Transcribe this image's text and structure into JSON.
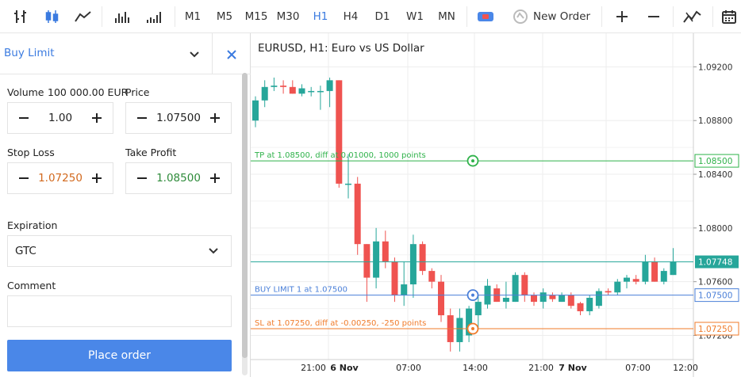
{
  "toolbar": {
    "timeframes": [
      "M1",
      "M5",
      "M15",
      "M30",
      "H1",
      "H4",
      "D1",
      "W1",
      "MN"
    ],
    "active_timeframe": "H1",
    "new_order_label": "New Order",
    "icons": [
      "bar-chart-icon",
      "candlestick-chart-icon",
      "line-chart-icon",
      "volume-bars-icon",
      "volume-ticks-icon",
      "toggle-icon",
      "one-click-icon",
      "zoom-in-icon",
      "zoom-out-icon",
      "indicators-icon",
      "calendar-icon"
    ]
  },
  "order": {
    "type_label": "Buy Limit",
    "volume_label": "Volume",
    "volume_amount": "100 000.00 EUR",
    "volume_value": "1.00",
    "price_label": "Price",
    "price_value": "1.07500",
    "sl_label": "Stop Loss",
    "sl_value": "1.07250",
    "tp_label": "Take Profit",
    "tp_value": "1.08500",
    "expiration_label": "Expiration",
    "expiration_value": "GTC",
    "comment_label": "Comment",
    "comment_value": "",
    "place_label": "Place order"
  },
  "colors": {
    "accent": "#3b7be0",
    "bull": "#26a69a",
    "bear": "#ef5350",
    "tp": "#2fb24a",
    "sl": "#f07b2a",
    "buy_limit": "#4a7fd8",
    "current": "#26a69a"
  },
  "chart_data": {
    "type": "candlestick",
    "title": "EURUSD, H1: Euro vs US Dollar",
    "ylim": [
      1.0702,
      1.0945
    ],
    "y_ticks": [
      "1.09200",
      "1.08800",
      "1.08400",
      "1.08000",
      "1.07600",
      "1.07200"
    ],
    "x_ticks": [
      "21:00",
      "6 Nov",
      "07:00",
      "14:00",
      "21:00",
      "7 Nov",
      "07:00",
      "12:00"
    ],
    "current_price": "1.07748",
    "lines": [
      {
        "kind": "tp",
        "price": 1.085,
        "price_label": "1.08500",
        "text": "TP at 1.08500, diff at 0.01000, 1000 points"
      },
      {
        "kind": "buy_limit",
        "price": 1.075,
        "price_label": "1.07500",
        "text": "BUY LIMIT 1 at 1.07500"
      },
      {
        "kind": "sl",
        "price": 1.0725,
        "price_label": "1.07250",
        "text": "SL at 1.07250, diff at -0.00250, -250 points"
      }
    ],
    "candles": [
      {
        "o": 1.088,
        "h": 1.0898,
        "l": 1.0875,
        "c": 1.0895
      },
      {
        "o": 1.0895,
        "h": 1.091,
        "l": 1.089,
        "c": 1.0905
      },
      {
        "o": 1.0905,
        "h": 1.0912,
        "l": 1.0902,
        "c": 1.0906
      },
      {
        "o": 1.0906,
        "h": 1.091,
        "l": 1.09,
        "c": 1.0905
      },
      {
        "o": 1.0905,
        "h": 1.091,
        "l": 1.09,
        "c": 1.09
      },
      {
        "o": 1.09,
        "h": 1.0907,
        "l": 1.0898,
        "c": 1.0904
      },
      {
        "o": 1.0902,
        "h": 1.0905,
        "l": 1.0898,
        "c": 1.0902
      },
      {
        "o": 1.0902,
        "h": 1.0906,
        "l": 1.0888,
        "c": 1.0902
      },
      {
        "o": 1.0902,
        "h": 1.0912,
        "l": 1.089,
        "c": 1.091
      },
      {
        "o": 1.091,
        "h": 1.091,
        "l": 1.083,
        "c": 1.0833
      },
      {
        "o": 1.0833,
        "h": 1.0855,
        "l": 1.0822,
        "c": 1.0833
      },
      {
        "o": 1.0833,
        "h": 1.0838,
        "l": 1.078,
        "c": 1.0788
      },
      {
        "o": 1.0788,
        "h": 1.0788,
        "l": 1.0745,
        "c": 1.0763
      },
      {
        "o": 1.0763,
        "h": 1.08,
        "l": 1.0755,
        "c": 1.079
      },
      {
        "o": 1.079,
        "h": 1.0798,
        "l": 1.077,
        "c": 1.0775
      },
      {
        "o": 1.0775,
        "h": 1.0778,
        "l": 1.0745,
        "c": 1.075
      },
      {
        "o": 1.075,
        "h": 1.0775,
        "l": 1.0742,
        "c": 1.0758
      },
      {
        "o": 1.0758,
        "h": 1.0795,
        "l": 1.0748,
        "c": 1.0788
      },
      {
        "o": 1.0788,
        "h": 1.079,
        "l": 1.0765,
        "c": 1.0768
      },
      {
        "o": 1.0768,
        "h": 1.077,
        "l": 1.0755,
        "c": 1.076
      },
      {
        "o": 1.076,
        "h": 1.0765,
        "l": 1.073,
        "c": 1.0735
      },
      {
        "o": 1.0735,
        "h": 1.074,
        "l": 1.0708,
        "c": 1.0715
      },
      {
        "o": 1.0715,
        "h": 1.074,
        "l": 1.0708,
        "c": 1.0733
      },
      {
        "o": 1.072,
        "h": 1.0742,
        "l": 1.0715,
        "c": 1.074
      },
      {
        "o": 1.0735,
        "h": 1.075,
        "l": 1.0725,
        "c": 1.0745
      },
      {
        "o": 1.0743,
        "h": 1.0762,
        "l": 1.074,
        "c": 1.0757
      },
      {
        "o": 1.0755,
        "h": 1.0758,
        "l": 1.0745,
        "c": 1.0745
      },
      {
        "o": 1.0745,
        "h": 1.076,
        "l": 1.074,
        "c": 1.0748
      },
      {
        "o": 1.0745,
        "h": 1.0767,
        "l": 1.0745,
        "c": 1.0765
      },
      {
        "o": 1.0765,
        "h": 1.0767,
        "l": 1.0745,
        "c": 1.075
      },
      {
        "o": 1.075,
        "h": 1.0752,
        "l": 1.0742,
        "c": 1.0745
      },
      {
        "o": 1.0745,
        "h": 1.0755,
        "l": 1.074,
        "c": 1.0752
      },
      {
        "o": 1.075,
        "h": 1.0752,
        "l": 1.0745,
        "c": 1.0747
      },
      {
        "o": 1.0745,
        "h": 1.0752,
        "l": 1.0745,
        "c": 1.075
      },
      {
        "o": 1.075,
        "h": 1.0752,
        "l": 1.074,
        "c": 1.0742
      },
      {
        "o": 1.0744,
        "h": 1.0745,
        "l": 1.0735,
        "c": 1.0738
      },
      {
        "o": 1.0738,
        "h": 1.075,
        "l": 1.0735,
        "c": 1.0748
      },
      {
        "o": 1.0742,
        "h": 1.0755,
        "l": 1.074,
        "c": 1.0753
      },
      {
        "o": 1.0753,
        "h": 1.0755,
        "l": 1.075,
        "c": 1.0752
      },
      {
        "o": 1.0752,
        "h": 1.0762,
        "l": 1.075,
        "c": 1.076
      },
      {
        "o": 1.076,
        "h": 1.0765,
        "l": 1.0755,
        "c": 1.0763
      },
      {
        "o": 1.0762,
        "h": 1.0765,
        "l": 1.0758,
        "c": 1.076
      },
      {
        "o": 1.076,
        "h": 1.078,
        "l": 1.0758,
        "c": 1.0775
      },
      {
        "o": 1.0775,
        "h": 1.0778,
        "l": 1.076,
        "c": 1.076
      },
      {
        "o": 1.076,
        "h": 1.077,
        "l": 1.0758,
        "c": 1.0768
      },
      {
        "o": 1.0765,
        "h": 1.0785,
        "l": 1.0765,
        "c": 1.0775
      }
    ]
  }
}
